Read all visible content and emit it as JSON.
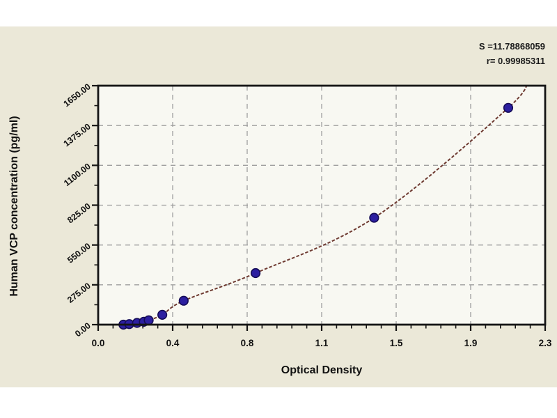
{
  "page": {
    "background": "#ffffff",
    "canvas_color": "#ebe8d8"
  },
  "chart_data": {
    "type": "scatter",
    "title": "",
    "xlabel": "Optical Density",
    "ylabel": "Human VCP concentration (pg/ml)",
    "annotations": {
      "s_value": "S =11.78868059",
      "r_value": "r= 0.99985311"
    },
    "xlim": [
      0,
      2.3
    ],
    "ylim": [
      0,
      1650
    ],
    "x_tick_labels": [
      "0.0",
      "0.4",
      "0.8",
      "1.1",
      "1.5",
      "1.9",
      "2.3"
    ],
    "y_tick_labels": [
      "0.00",
      "275.00",
      "550.00",
      "825.00",
      "1100.00",
      "1375.00",
      "1650.00"
    ],
    "x_minor_per_interval": 4,
    "y_minor_per_interval": 1,
    "grid": true,
    "legend": false,
    "points": [
      {
        "x": 0.13,
        "y": 0
      },
      {
        "x": 0.16,
        "y": 4
      },
      {
        "x": 0.2,
        "y": 12
      },
      {
        "x": 0.235,
        "y": 20
      },
      {
        "x": 0.26,
        "y": 30
      },
      {
        "x": 0.33,
        "y": 68
      },
      {
        "x": 0.44,
        "y": 165
      },
      {
        "x": 0.81,
        "y": 356
      },
      {
        "x": 1.42,
        "y": 738
      },
      {
        "x": 2.11,
        "y": 1497
      }
    ],
    "curve_fit": {
      "start": {
        "x": 0.115,
        "y": -6
      },
      "extend_to": {
        "x": 2.21,
        "y": 1700
      },
      "dashed": true
    },
    "colors": {
      "curve": "#6e3a31",
      "point_fill": "#2c1fa0",
      "point_stroke": "#140b55",
      "grid": "#9e9e9e",
      "axis": "#151515",
      "plot_bg": "#f8f8f2",
      "text": "#111111"
    }
  }
}
